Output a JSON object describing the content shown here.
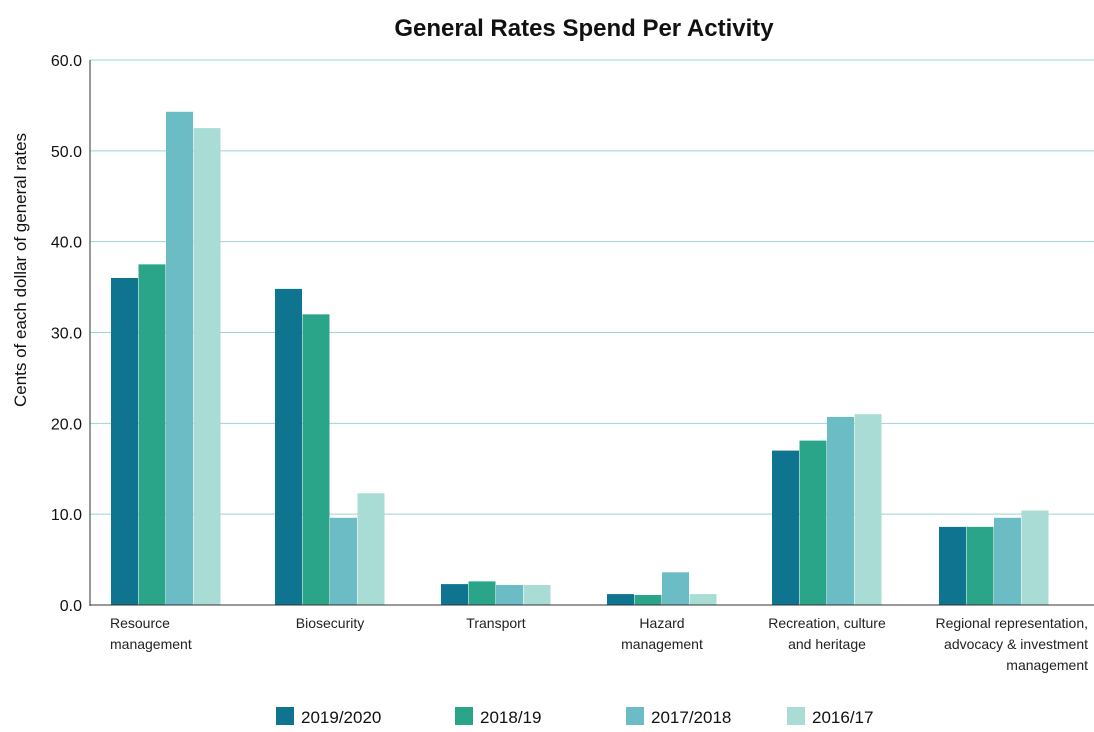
{
  "chart_data": {
    "type": "bar",
    "title": "General Rates Spend Per Activity",
    "xlabel": "",
    "ylabel": "Cents of each dollar of general rates",
    "ylim": [
      0,
      60
    ],
    "yticks": [
      "0.0",
      "10.0",
      "20.0",
      "30.0",
      "40.0",
      "50.0",
      "60.0"
    ],
    "grid": true,
    "legend_position": "bottom",
    "categories": [
      [
        "Resource",
        "management"
      ],
      [
        "Biosecurity"
      ],
      [
        "Transport"
      ],
      [
        "Hazard",
        "management"
      ],
      [
        "Recreation, culture",
        "and heritage"
      ],
      [
        "Regional representation,",
        "advocacy & investment",
        "management"
      ]
    ],
    "category_align": [
      "start",
      "middle",
      "middle",
      "middle",
      "middle",
      "end"
    ],
    "series": [
      {
        "name": "2019/2020",
        "color": "#0e7490",
        "values": [
          36.0,
          34.8,
          2.3,
          1.2,
          17.0,
          8.6
        ]
      },
      {
        "name": "2018/19",
        "color": "#2ba58a",
        "values": [
          37.5,
          32.0,
          2.6,
          1.1,
          18.1,
          8.6
        ]
      },
      {
        "name": "2017/2018",
        "color": "#6bbcc5",
        "values": [
          54.3,
          9.6,
          2.2,
          3.6,
          20.7,
          9.6
        ]
      },
      {
        "name": "2016/17",
        "color": "#a8dcd4",
        "values": [
          52.5,
          12.3,
          2.2,
          1.2,
          21.0,
          10.4
        ]
      }
    ]
  }
}
